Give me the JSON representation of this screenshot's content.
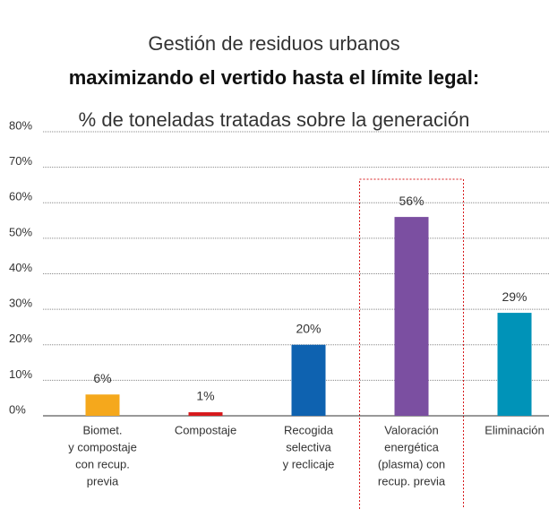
{
  "chart_data": {
    "type": "bar",
    "title": "Gestión de residuos urbanos",
    "subtitle_bold": "maximizando el vertido hasta el límite legal:",
    "subtitle": "% de toneladas tratadas sobre la generación",
    "categories": [
      [
        "Biomet.",
        "y compostaje",
        "con recup.",
        "previa"
      ],
      [
        "Compostaje"
      ],
      [
        "Recogida",
        "selectiva",
        "y reclicaje"
      ],
      [
        "Valoración",
        "energética",
        "(plasma) con",
        "recup. previa"
      ],
      [
        "Eliminación"
      ]
    ],
    "values": [
      6,
      1,
      20,
      56,
      29
    ],
    "value_labels": [
      "6%",
      "1%",
      "20%",
      "56%",
      "29%"
    ],
    "colors": [
      "#f5a81c",
      "#d7191c",
      "#0e62b0",
      "#7b4fa1",
      "#0093b8"
    ],
    "highlight_category": 3,
    "ylim": [
      0,
      80
    ],
    "yticks": [
      {
        "value": 0,
        "label": "0%"
      },
      {
        "value": 10,
        "label": "10%"
      },
      {
        "value": 20,
        "label": "20%"
      },
      {
        "value": 30,
        "label": "30%"
      },
      {
        "value": 40,
        "label": "40%"
      },
      {
        "value": 50,
        "label": "50%"
      },
      {
        "value": 60,
        "label": "60%"
      },
      {
        "value": 70,
        "label": "70%"
      },
      {
        "value": 80,
        "label": "80%"
      }
    ],
    "grid": true
  }
}
